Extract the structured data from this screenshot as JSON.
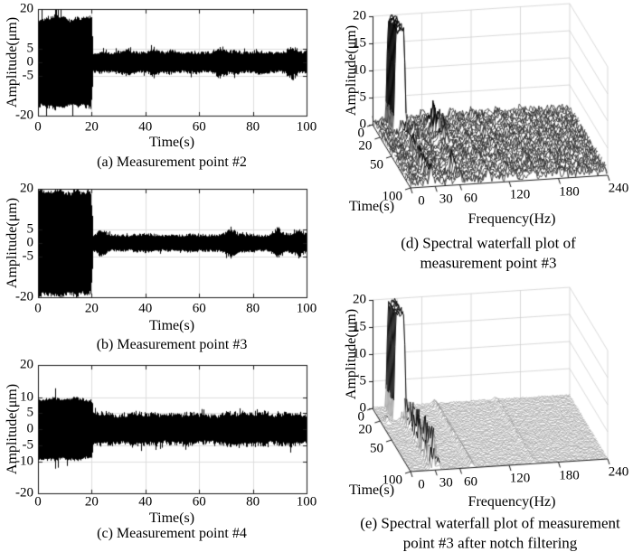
{
  "figure": {
    "background": "#ffffff",
    "text_color": "#000000",
    "grid_color": "#dcdcdc",
    "axis_color": "#1a1a1a"
  },
  "chart_data": [
    {
      "id": "a",
      "type": "line",
      "kind": "time-series-vibration",
      "caption": "(a) Measurement point #2",
      "xlabel": "Time(s)",
      "ylabel": "Amplitude(μm)",
      "xlim": [
        0,
        100
      ],
      "ylim": [
        -20,
        20
      ],
      "xticks": [
        0,
        20,
        40,
        60,
        80,
        100
      ],
      "yticks": [
        20,
        5,
        0,
        -5,
        -20
      ],
      "grid": true,
      "line_color": "#000000",
      "signal": {
        "segments": [
          {
            "t": [
              0,
              20
            ],
            "amplitude": 18
          },
          {
            "t": [
              20,
              100
            ],
            "amplitude": 4.6
          }
        ],
        "bursts": [
          {
            "t": 33,
            "amplitude": 6.0
          },
          {
            "t": 43,
            "amplitude": 6.3
          },
          {
            "t": 68,
            "amplitude": 6.3
          },
          {
            "t": 95,
            "amplitude": 7.2
          }
        ]
      }
    },
    {
      "id": "b",
      "type": "line",
      "kind": "time-series-vibration",
      "caption": "(b) Measurement point #3",
      "xlabel": "Time(s)",
      "ylabel": "Amplitude(μm)",
      "xlim": [
        0,
        100
      ],
      "ylim": [
        -20,
        20
      ],
      "xticks": [
        0,
        20,
        40,
        60,
        80,
        100
      ],
      "yticks": [
        20,
        5,
        0,
        -5,
        -20
      ],
      "grid": true,
      "line_color": "#000000",
      "signal": {
        "segments": [
          {
            "t": [
              0,
              20
            ],
            "amplitude": 20.5
          },
          {
            "t": [
              20,
              100
            ],
            "amplitude": 3.6
          }
        ],
        "bursts": [
          {
            "t": 24,
            "amplitude": 5.5
          },
          {
            "t": 72,
            "amplitude": 6.3
          },
          {
            "t": 89,
            "amplitude": 6.8
          },
          {
            "t": 97,
            "amplitude": 5.5
          }
        ]
      }
    },
    {
      "id": "c",
      "type": "line",
      "kind": "time-series-vibration",
      "caption": "(c) Measurement point #4",
      "xlabel": "Time(s)",
      "ylabel": "Amplitude(μm)",
      "xlim": [
        0,
        100
      ],
      "ylim": [
        -20,
        20
      ],
      "xticks": [
        0,
        20,
        40,
        60,
        80,
        100
      ],
      "yticks": [
        20,
        10,
        5,
        0,
        -5,
        -10,
        -20
      ],
      "grid": true,
      "line_color": "#000000",
      "signal": {
        "segments": [
          {
            "t": [
              0,
              20
            ],
            "amplitude": 10
          },
          {
            "t": [
              20,
              100
            ],
            "amplitude": 5.4
          }
        ],
        "bursts": [
          {
            "t": 85,
            "amplitude": 6.4
          }
        ]
      }
    },
    {
      "id": "d",
      "type": "waterfall3d",
      "kind": "spectral-waterfall",
      "caption_lines": [
        "(d) Spectral waterfall plot of",
        "measurement point #3"
      ],
      "xlabel": "Frequency(Hz)",
      "ylabel": "Time(s)",
      "zlabel": "Amplitude(μm)",
      "xlim": [
        0,
        240
      ],
      "ylim": [
        0,
        100
      ],
      "zlim": [
        0,
        20
      ],
      "xticks": [
        0,
        30,
        60,
        120,
        180,
        240
      ],
      "yticks": [
        0,
        20,
        50,
        100
      ],
      "zticks": [
        0,
        5,
        10,
        15,
        20
      ],
      "mesh_color": "#1c1c1c",
      "features": {
        "noise_floor": 1.6,
        "main_peak": {
          "freq": [
            16,
            32
          ],
          "time": [
            0,
            20
          ],
          "amplitude": 20
        },
        "time_ridges": [
          {
            "freq": 25,
            "amplitude": 2.6
          },
          {
            "freq": 60,
            "amplitude": 1.2
          },
          {
            "freq": 95,
            "amplitude": 1.3
          },
          {
            "freq": 120,
            "amplitude": 1.3
          },
          {
            "freq": 150,
            "amplitude": 1.2
          },
          {
            "freq": 180,
            "amplitude": 1.0
          }
        ],
        "clusters": [
          {
            "freq": [
              33,
              47
            ],
            "time": [
              18,
              40
            ],
            "amplitude": 2.2
          },
          {
            "freq": [
              50,
              80
            ],
            "time": [
              14,
              48
            ],
            "amplitude": 4.2
          },
          {
            "freq": [
              54,
              62
            ],
            "time": [
              78,
              90
            ],
            "amplitude": 4.2
          }
        ]
      }
    },
    {
      "id": "e",
      "type": "waterfall3d",
      "kind": "spectral-waterfall",
      "caption_lines": [
        "(e) Spectral waterfall plot of measurement",
        "point #3 after notch filtering"
      ],
      "xlabel": "Frequency(Hz)",
      "ylabel": "Time(s)",
      "zlabel": "Amplitude(μm)",
      "xlim": [
        0,
        240
      ],
      "ylim": [
        0,
        100
      ],
      "zlim": [
        0,
        20
      ],
      "xticks": [
        0,
        30,
        60,
        120,
        180,
        240
      ],
      "yticks": [
        0,
        20,
        50,
        100
      ],
      "zticks": [
        0,
        5,
        10,
        15,
        20
      ],
      "mesh_color": "#707070",
      "features": {
        "noise_floor": 0.3,
        "main_peak": {
          "freq": [
            16,
            32
          ],
          "time": [
            0,
            20
          ],
          "amplitude": 20
        },
        "time_ridges": [
          {
            "freq": 30,
            "amplitude": 3.2,
            "time": [
              18,
              100
            ],
            "spiky": true
          },
          {
            "freq": 75,
            "amplitude": 0.9
          },
          {
            "freq": 150,
            "amplitude": 0.45
          }
        ],
        "clusters": [
          {
            "freq": [
              0,
              12
            ],
            "time": [
              18,
              28
            ],
            "amplitude": 1.2
          },
          {
            "freq": [
              40,
              52
            ],
            "time": [
              25,
              70
            ],
            "amplitude": 1.3
          }
        ]
      }
    }
  ]
}
